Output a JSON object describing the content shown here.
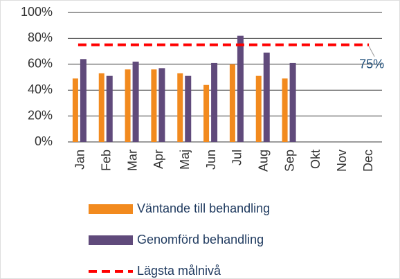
{
  "chart_data": {
    "type": "bar",
    "categories": [
      "Jan",
      "Feb",
      "Mar",
      "Apr",
      "Maj",
      "Jun",
      "Jul",
      "Aug",
      "Sep",
      "Okt",
      "Nov",
      "Dec"
    ],
    "series": [
      {
        "name": "Väntande till behandling",
        "color": "#f28a1e",
        "values": [
          49,
          53,
          56,
          56,
          53,
          44,
          60,
          51,
          49,
          null,
          null,
          null
        ]
      },
      {
        "name": "Genomförd behandling",
        "color": "#604a7b",
        "values": [
          64,
          51,
          62,
          57,
          51,
          61,
          82,
          69,
          61,
          null,
          null,
          null
        ]
      }
    ],
    "target": {
      "name": "Lägsta målnivå",
      "value": 75,
      "label": "75%",
      "color": "#ff0000"
    },
    "ylim": [
      0,
      100
    ],
    "yticks": [
      {
        "value": 0,
        "label": "0%"
      },
      {
        "value": 20,
        "label": "20%"
      },
      {
        "value": 40,
        "label": "40%"
      },
      {
        "value": 60,
        "label": "60%"
      },
      {
        "value": 80,
        "label": "80%"
      },
      {
        "value": 100,
        "label": "100%"
      }
    ],
    "grid": true
  }
}
